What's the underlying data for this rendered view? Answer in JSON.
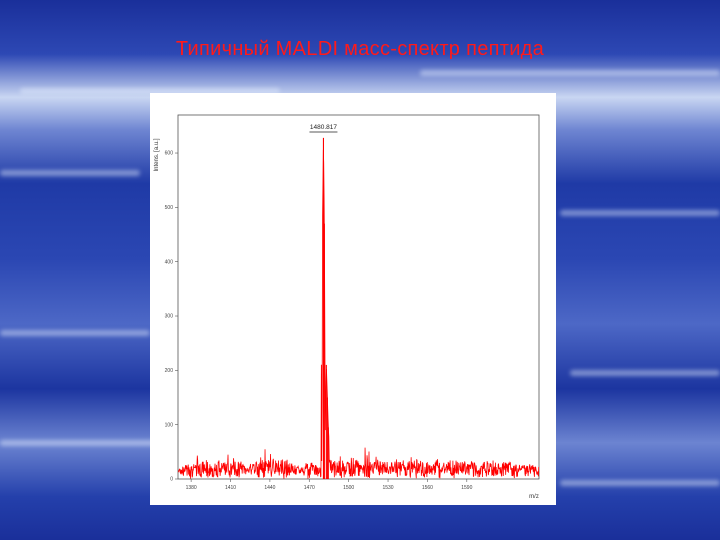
{
  "slide": {
    "title": "Типичный MALDI масс-спектр пептида"
  },
  "colors": {
    "title": "#ff1a1a",
    "spectrum": "#ff0000",
    "background_blue": "#2440ab"
  },
  "chart_data": {
    "type": "line",
    "ylabel": "Intens. [a.u.]",
    "xlabel": "m/z",
    "xlim": [
      1370,
      1645
    ],
    "ylim": [
      0,
      670
    ],
    "x_tick_values": [
      1380,
      1410,
      1440,
      1470,
      1500,
      1530,
      1560,
      1590
    ],
    "x_tick_labels": [
      "1380",
      "1410",
      "1440",
      "1470",
      "1500",
      "1530",
      "1560",
      "1590"
    ],
    "y_tick_values": [
      0,
      100,
      200,
      300,
      400,
      500,
      600
    ],
    "y_tick_labels": [
      "0",
      "100",
      "200",
      "300",
      "400",
      "500",
      "600"
    ],
    "peak_annotation": {
      "x": 1480.8,
      "label": "1480.817"
    },
    "baseline_noise": [
      0,
      30
    ],
    "series": [
      {
        "points": [
          [
            1370,
            12
          ],
          [
            1380,
            25
          ],
          [
            1385,
            45
          ],
          [
            1395,
            20
          ],
          [
            1405,
            35
          ],
          [
            1413,
            40
          ],
          [
            1420,
            18
          ],
          [
            1431,
            25
          ],
          [
            1438,
            75
          ],
          [
            1445,
            40
          ],
          [
            1460,
            18
          ],
          [
            1470,
            25
          ],
          [
            1478,
            15
          ],
          [
            1480.8,
            628
          ],
          [
            1481.5,
            470
          ],
          [
            1482.2,
            90
          ],
          [
            1483.0,
            210
          ],
          [
            1483.8,
            150
          ],
          [
            1484.5,
            95
          ],
          [
            1486,
            30
          ],
          [
            1494,
            40
          ],
          [
            1500,
            25
          ],
          [
            1505,
            40
          ],
          [
            1511,
            55
          ],
          [
            1519,
            35
          ],
          [
            1525,
            60
          ],
          [
            1530,
            80
          ],
          [
            1532,
            50
          ],
          [
            1545,
            35
          ],
          [
            1555,
            40
          ],
          [
            1565,
            30
          ],
          [
            1573,
            60
          ],
          [
            1580,
            25
          ],
          [
            1590,
            30
          ],
          [
            1600,
            22
          ],
          [
            1615,
            30
          ],
          [
            1630,
            18
          ],
          [
            1645,
            20
          ]
        ]
      }
    ]
  }
}
